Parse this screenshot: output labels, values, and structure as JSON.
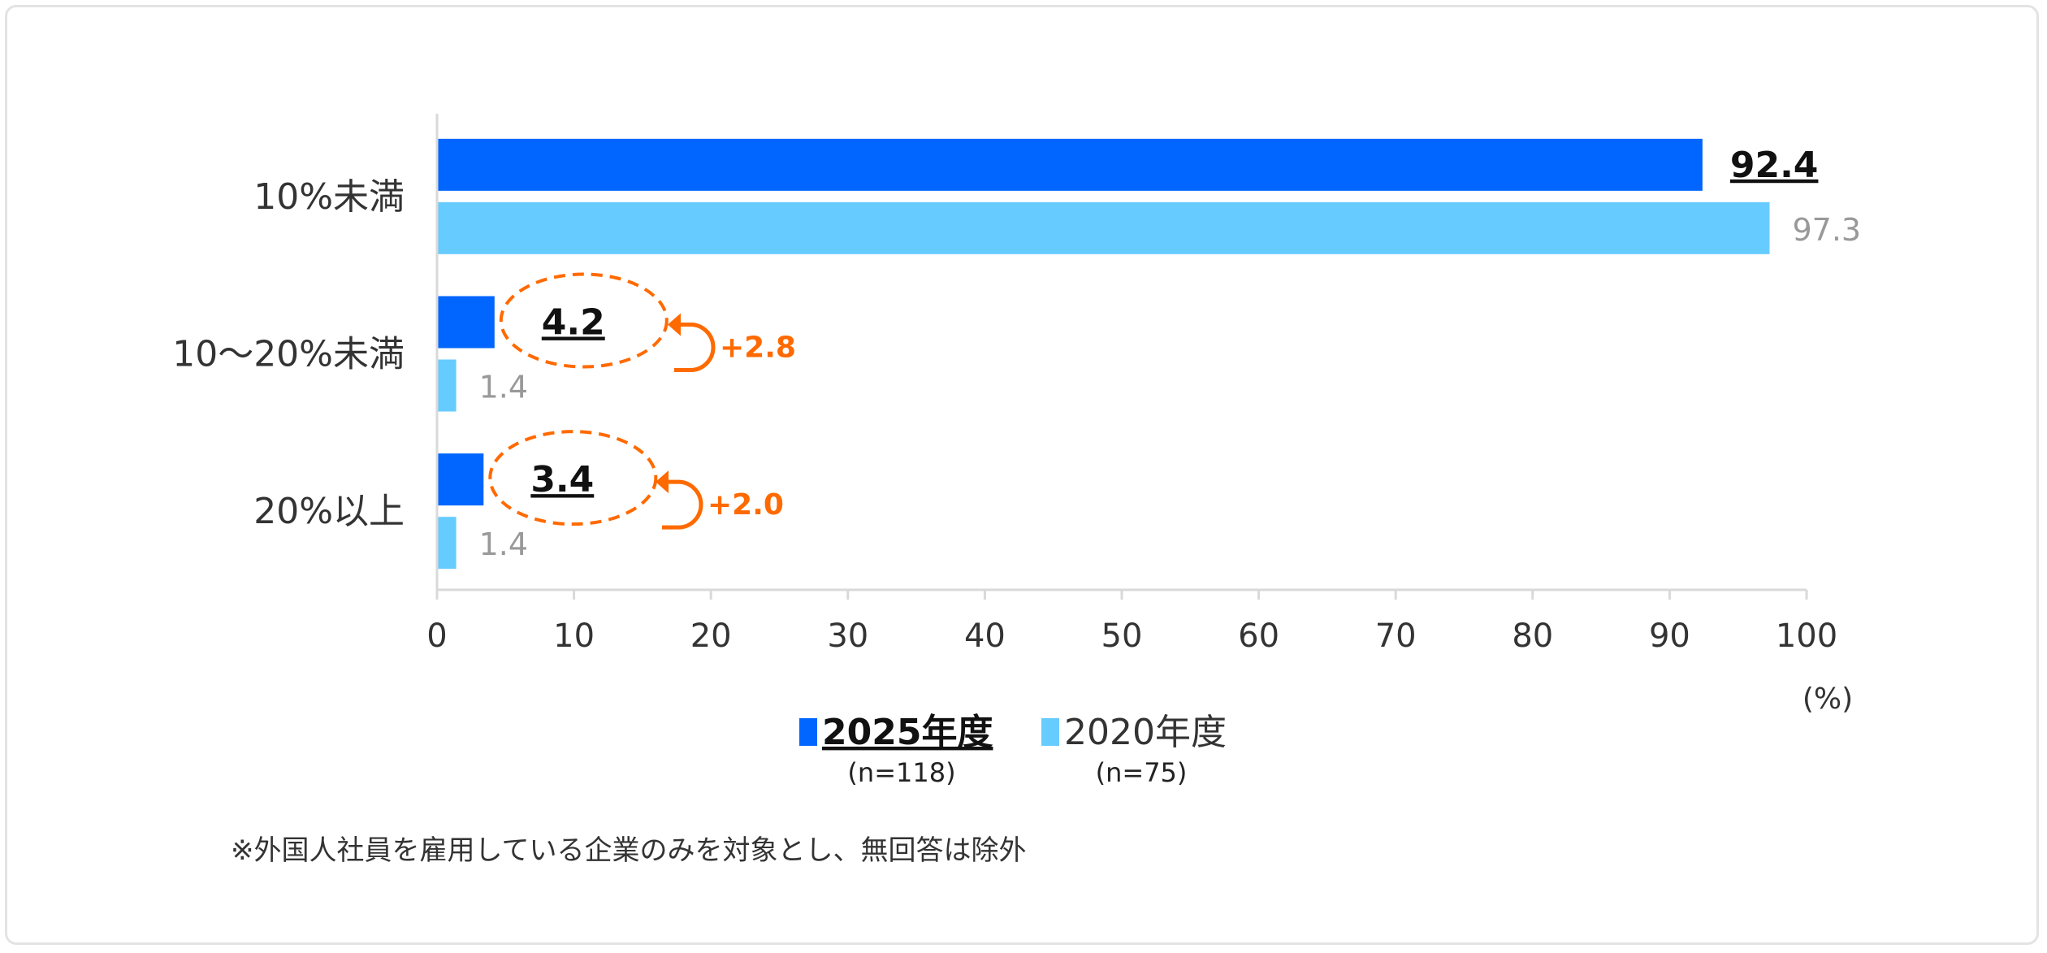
{
  "chart_data": {
    "type": "bar",
    "orientation": "horizontal",
    "categories": [
      "10%未満",
      "10～20%未満",
      "20%以上"
    ],
    "series": [
      {
        "name": "2025年度",
        "sample": "(n=118)",
        "values": [
          92.4,
          4.2,
          3.4
        ],
        "labels": [
          "92.4",
          "4.2",
          "3.4"
        ],
        "color": "#0066ff"
      },
      {
        "name": "2020年度",
        "sample": "(n=75)",
        "values": [
          97.3,
          1.4,
          1.4
        ],
        "labels": [
          "97.3",
          "1.4",
          "1.4"
        ],
        "color": "#66ccff"
      }
    ],
    "xlim": [
      0,
      100
    ],
    "xticks": [
      "0",
      "10",
      "20",
      "30",
      "40",
      "50",
      "60",
      "70",
      "80",
      "90",
      "100"
    ],
    "xunit": "(%)",
    "grid": false,
    "legend_placement": "bottom",
    "annotations": [
      {
        "category": "10～20%未満",
        "text": "+2.8",
        "color": "#ff6a00"
      },
      {
        "category": "20%以上",
        "text": "+2.0",
        "color": "#ff6a00"
      }
    ],
    "footnote": "※外国人社員を雇用している企業のみを対象とし、無回答は除外"
  }
}
